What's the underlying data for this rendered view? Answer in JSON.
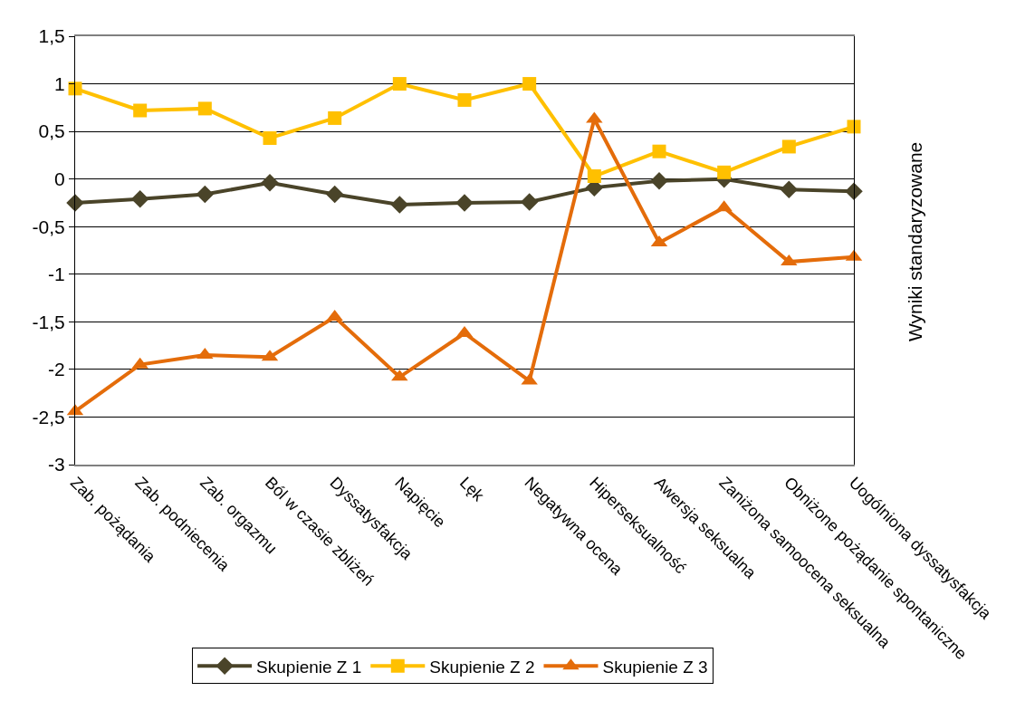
{
  "chart_data": {
    "type": "line",
    "ylabel": "Wyniki standaryzowane",
    "categories": [
      "Zab. pożądania",
      "Zab. podniecenia",
      "Zab. orgazmu",
      "Ból w czasie zbliżeń",
      "Dyssatysfakcja",
      "Napięcie",
      "Lęk",
      "Negatywna ocena",
      "Hiperseksualność",
      "Awersja seksualna",
      "Zaniżona samoocena seksualna",
      "Obniżone pożądanie spontaniczne",
      "Uogólniona dyssatysfakcja"
    ],
    "series": [
      {
        "name": "Skupienie Z 1",
        "color": "#4a4429",
        "marker": "diamond",
        "values": [
          -0.25,
          -0.21,
          -0.16,
          -0.04,
          -0.16,
          -0.27,
          -0.25,
          -0.24,
          -0.09,
          -0.02,
          0.0,
          -0.11,
          -0.13
        ]
      },
      {
        "name": "Skupienie Z 2",
        "color": "#ffc000",
        "marker": "square",
        "values": [
          0.95,
          0.72,
          0.74,
          0.43,
          0.64,
          1.0,
          0.83,
          1.0,
          0.03,
          0.29,
          0.07,
          0.34,
          0.55
        ]
      },
      {
        "name": "Skupienie Z 3",
        "color": "#e46c0a",
        "marker": "triangle",
        "values": [
          -2.44,
          -1.95,
          -1.85,
          -1.87,
          -1.45,
          -2.08,
          -1.62,
          -2.12,
          0.63,
          -0.67,
          -0.3,
          -0.87,
          -0.82
        ]
      }
    ],
    "ylim": [
      -3,
      1.5
    ],
    "yticks": [
      -3,
      {
        "value": -2.5,
        "label": "-2,5"
      },
      -2,
      {
        "value": -1.5,
        "label": "-1,5"
      },
      -1,
      {
        "value": -0.5,
        "label": "-0,5"
      },
      0,
      {
        "value": 0.5,
        "label": "0,5"
      },
      1,
      {
        "value": 1.5,
        "label": "1,5"
      }
    ],
    "grid": "y",
    "legend": "bottom",
    "line_style": "solid"
  }
}
